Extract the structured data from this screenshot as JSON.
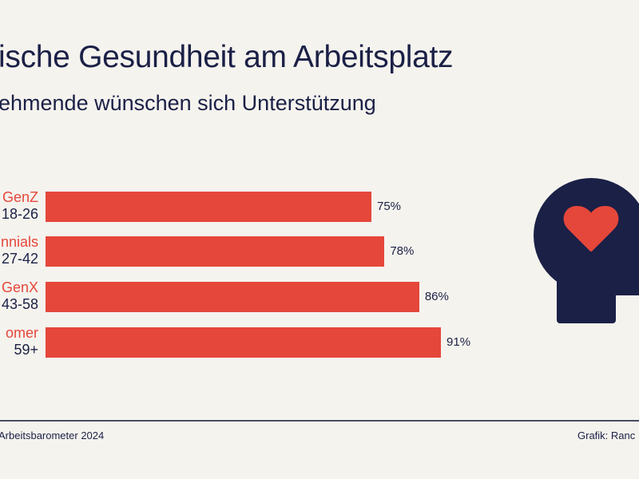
{
  "title": "ische Gesundheit am Arbeitsplatz",
  "subtitle": "ehmende wünschen sich Unterstützung",
  "colors": {
    "bar": "#E5473A",
    "text": "#1B2046",
    "background": "#F5F3EE"
  },
  "chart_data": {
    "type": "bar",
    "orientation": "horizontal",
    "categories": [
      {
        "name": "GenZ",
        "range": "18-26"
      },
      {
        "name": "nnials",
        "range": "27-42"
      },
      {
        "name": "GenX",
        "range": "43-58"
      },
      {
        "name": "omer",
        "range": "59+"
      }
    ],
    "values": [
      75,
      78,
      86,
      91
    ],
    "labels": [
      "75%",
      "78%",
      "86%",
      "91%"
    ],
    "xlim": [
      0,
      100
    ],
    "grid": false
  },
  "icon": "head-with-heart-icon",
  "footer": {
    "source": "Arbeitsbarometer 2024",
    "credit": "Grafik: Ranc"
  }
}
